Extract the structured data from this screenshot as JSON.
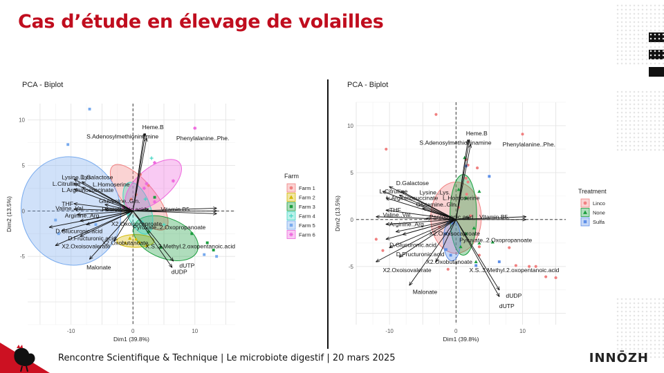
{
  "slide_title": "Cas d’étude en élevage de volailles",
  "footer_text": "Rencontre Scientifique  & Technique | Le microbiote digestif  | 20 mars 2025",
  "logo_text": "INNŌZH",
  "chart_data": [
    {
      "type": "scatter",
      "title": "PCA - Biplot",
      "xlabel": "Dim1 (39.8%)",
      "ylabel": "Dim2 (13.5%)",
      "xlim": [
        -17,
        16.5
      ],
      "ylim": [
        -12.5,
        11.8
      ],
      "x_ticks": [
        -10,
        0,
        10
      ],
      "y_ticks": [
        -5,
        0,
        5,
        10
      ],
      "legend_title": "Farm",
      "legend_position": "right",
      "groups": [
        {
          "name": "Farm 1",
          "color": "#f08080",
          "shape": "circle",
          "ellipse": {
            "cx": 1,
            "cy": 1.5,
            "rx": 2.5,
            "ry": 4.5,
            "angle": 40
          },
          "points": [
            [
              -1.5,
              0.5
            ],
            [
              0.5,
              1.8
            ],
            [
              2.5,
              2.8
            ],
            [
              1.2,
              4.0
            ],
            [
              -0.3,
              1.3
            ]
          ]
        },
        {
          "name": "Farm 2",
          "color": "#d4b800",
          "shape": "triangle",
          "ellipse": {
            "cx": 0.4,
            "cy": -3.3,
            "rx": 3.0,
            "ry": 0.7,
            "angle": 0
          },
          "points": [
            [
              -0.5,
              -3.0
            ],
            [
              1.0,
              -3.4
            ],
            [
              2.2,
              -3.8
            ],
            [
              -1.2,
              -3.5
            ],
            [
              0.5,
              -3.1
            ]
          ]
        },
        {
          "name": "Farm 3",
          "color": "#1b9e3e",
          "shape": "square",
          "ellipse": {
            "cx": 5.3,
            "cy": -3.0,
            "rx": 5.5,
            "ry": 2.2,
            "angle": -22
          },
          "points": [
            [
              3.5,
              1.5
            ],
            [
              4.5,
              -4.0
            ],
            [
              9.5,
              -2.5
            ],
            [
              12,
              -3.5
            ],
            [
              13,
              -4.3
            ],
            [
              2.5,
              -2.3
            ]
          ]
        },
        {
          "name": "Farm 4",
          "color": "#40d6c2",
          "shape": "plus",
          "ellipse": {
            "cx": 0.8,
            "cy": 0.3,
            "rx": 2.0,
            "ry": 3.0,
            "angle": 20
          },
          "points": [
            [
              3,
              5.8
            ],
            [
              5,
              -1.5
            ],
            [
              1.5,
              -1.2
            ],
            [
              -0.7,
              -0.3
            ],
            [
              2.0,
              1.3
            ]
          ]
        },
        {
          "name": "Farm 5",
          "color": "#77aaee",
          "shape": "square",
          "ellipse": {
            "cx": -10,
            "cy": 0,
            "rx": 8.0,
            "ry": 6.0,
            "angle": 15
          },
          "points": [
            [
              -7,
              11.2
            ],
            [
              -10.5,
              7.3
            ],
            [
              -12,
              -2.5
            ],
            [
              -12.5,
              -1.0
            ],
            [
              11.5,
              -4.8
            ],
            [
              13.5,
              -5.0
            ],
            [
              -6,
              -1.5
            ]
          ]
        },
        {
          "name": "Farm 6",
          "color": "#ee66dd",
          "shape": "asterisk",
          "ellipse": {
            "cx": 3.3,
            "cy": 2.9,
            "rx": 5.5,
            "ry": 1.8,
            "angle": 40
          },
          "points": [
            [
              10,
              9.1
            ],
            [
              3.5,
              5.3
            ],
            [
              6.5,
              3.3
            ],
            [
              2.2,
              3.0
            ],
            [
              -1.5,
              0.4
            ],
            [
              1.8,
              2.5
            ],
            [
              3.5,
              1.0
            ]
          ]
        }
      ],
      "vectors": [
        {
          "label": "Heme.B",
          "x": 2.0,
          "y": 8.5,
          "lx": 1.5,
          "ly": 9.2
        },
        {
          "label": "S.Adenosylmethioninamine",
          "x": 1.8,
          "y": 8.5,
          "lx": -7.5,
          "ly": 8.2
        },
        {
          "label": "Phenylalanine..Phe.",
          "x": 2.2,
          "y": 8.0,
          "lx": 7.0,
          "ly": 8.0
        },
        {
          "label": "Lysine..Lys.",
          "x": -9.5,
          "y": 3.5,
          "lx": -11.5,
          "ly": 3.7
        },
        {
          "label": "D.Galactose",
          "x": -8.2,
          "y": 3.2,
          "lx": -8.5,
          "ly": 3.7
        },
        {
          "label": "L.Citrulline",
          "x": -9.5,
          "y": 3.0,
          "lx": -13.0,
          "ly": 3.0
        },
        {
          "label": "L.Homoserine",
          "x": -8.2,
          "y": 2.6,
          "lx": -6.5,
          "ly": 2.9
        },
        {
          "label": "L.Argininosuccinate",
          "x": -9.5,
          "y": 2.4,
          "lx": -11.5,
          "ly": 2.3
        },
        {
          "label": "THF",
          "x": -9.5,
          "y": 0.8,
          "lx": -11.5,
          "ly": 0.8
        },
        {
          "label": "Glutamine..Gln.",
          "x": -4.5,
          "y": 0.7,
          "lx": -5.5,
          "ly": 1.1
        },
        {
          "label": "Valine..Val.",
          "x": -9.5,
          "y": 0.2,
          "lx": -12.5,
          "ly": 0.3
        },
        {
          "label": "Pantothenic.acid",
          "x": -4.5,
          "y": 0.2,
          "lx": -5.0,
          "ly": 0.2
        },
        {
          "label": "Vitamin.B5.",
          "x": 2.5,
          "y": 0.2,
          "lx": 4.5,
          "ly": 0.2
        },
        {
          "label": "Arginine..Arg.",
          "x": -9.0,
          "y": -0.4,
          "lx": -11.0,
          "ly": -0.5
        },
        {
          "label": "",
          "x": 13.5,
          "y": 0.3,
          "lx": 0,
          "ly": 0
        },
        {
          "label": "",
          "x": 13.5,
          "y": 0.0,
          "lx": 0,
          "ly": 0
        },
        {
          "label": "",
          "x": 13.5,
          "y": -0.3,
          "lx": 0,
          "ly": 0
        },
        {
          "label": "X2.Oxoisocaproate",
          "x": -8.5,
          "y": -1.1,
          "lx": -3.5,
          "ly": -1.4
        },
        {
          "label": "Pyruvate..2.Oxopropanoate",
          "x": -7.5,
          "y": -1.5,
          "lx": 0.0,
          "ly": -1.8
        },
        {
          "label": "D.Glucuronic.acid",
          "x": -13.5,
          "y": -1.8,
          "lx": -12.5,
          "ly": -2.2
        },
        {
          "label": "D.Fructuronic.acid",
          "x": -11.5,
          "y": -2.2,
          "lx": -10.5,
          "ly": -3.0
        },
        {
          "label": "X2.Oxobutanoate",
          "x": -8.5,
          "y": -2.8,
          "lx": -5.0,
          "ly": -3.5
        },
        {
          "label": "X.S..3.Methyl.2.oxopentanoic.acid",
          "x": -3.0,
          "y": -3.3,
          "lx": 2.0,
          "ly": -3.9
        },
        {
          "label": "X2.Oxoisovalerate",
          "x": -12.5,
          "y": -3.8,
          "lx": -11.5,
          "ly": -3.9
        },
        {
          "label": "Malonate",
          "x": -7.0,
          "y": -5.3,
          "lx": -7.5,
          "ly": -6.2
        },
        {
          "label": "dUTP",
          "x": 6.5,
          "y": -5.5,
          "lx": 7.5,
          "ly": -6.0
        },
        {
          "label": "dUDP",
          "x": 6.3,
          "y": -6.2,
          "lx": 6.2,
          "ly": -6.7
        }
      ]
    },
    {
      "type": "scatter",
      "title": "PCA - Biplot",
      "xlabel": "Dim1 (39.8%)",
      "ylabel": "Dim2 (13.5%)",
      "xlim": [
        -15,
        16.5
      ],
      "ylim": [
        -11.2,
        12.5
      ],
      "x_ticks": [
        -10,
        0,
        10
      ],
      "y_ticks": [
        -5,
        0,
        5,
        10
      ],
      "legend_title": "Treatment",
      "legend_position": "right",
      "groups": [
        {
          "name": "Linco",
          "color": "#f08080",
          "shape": "circle",
          "ellipse": {
            "cx": 0,
            "cy": 0.2,
            "rx": 3.8,
            "ry": 3.8,
            "angle": 0
          },
          "points": [
            [
              -3,
              11.2
            ],
            [
              -10.5,
              7.5
            ],
            [
              10,
              9.1
            ],
            [
              1.5,
              6.4
            ],
            [
              1.8,
              5.8
            ],
            [
              1.5,
              4.4
            ],
            [
              1.8,
              4.0
            ],
            [
              3.2,
              5.5
            ],
            [
              1.6,
              2.7
            ],
            [
              2.2,
              0.4
            ],
            [
              -2.5,
              -0.8
            ],
            [
              13.5,
              -6.1
            ],
            [
              15,
              -6.2
            ],
            [
              11,
              -5.0
            ],
            [
              12,
              -5.0
            ],
            [
              8,
              -3.0
            ],
            [
              -11,
              -3.3
            ],
            [
              -12,
              -2.1
            ],
            [
              -1.2,
              -5.3
            ],
            [
              3.5,
              -3.8
            ],
            [
              9,
              -4.9
            ],
            [
              3.5,
              -2.9
            ],
            [
              0.4,
              1.3
            ]
          ]
        },
        {
          "name": "None",
          "color": "#1b9e3e",
          "shape": "triangle",
          "ellipse": {
            "cx": 1.1,
            "cy": 0.5,
            "rx": 2.0,
            "ry": 4.3,
            "angle": 0
          },
          "points": [
            [
              1.3,
              6.6
            ],
            [
              0.4,
              3.2
            ],
            [
              1.5,
              2.3
            ],
            [
              3.5,
              3.0
            ],
            [
              3.0,
              -4.5
            ],
            [
              3.5,
              -2.5
            ],
            [
              2.7,
              -0.9
            ],
            [
              5.5,
              -2.4
            ],
            [
              1.5,
              -1.5
            ],
            [
              0.7,
              -2.9
            ]
          ]
        },
        {
          "name": "Sulfa",
          "color": "#5d8fe8",
          "shape": "square",
          "ellipse": {
            "cx": -0.6,
            "cy": -2.2,
            "rx": 1.3,
            "ry": 2.2,
            "angle": 0
          },
          "points": [
            [
              5,
              4.6
            ],
            [
              1.5,
              5.7
            ],
            [
              -0.5,
              -0.4
            ],
            [
              -1.5,
              -1.5
            ],
            [
              3.0,
              -4.9
            ],
            [
              6.5,
              -4.5
            ],
            [
              -0.8,
              -3.8
            ],
            [
              -1.5,
              -3.2
            ]
          ]
        }
      ],
      "vectors": [
        {
          "label": "Heme.B",
          "x": 2.0,
          "y": 8.5,
          "lx": 1.5,
          "ly": 9.2
        },
        {
          "label": "S.Adenosylmethioninamine",
          "x": 1.8,
          "y": 8.5,
          "lx": -5.5,
          "ly": 8.2
        },
        {
          "label": "Phenylalanine..Phe.",
          "x": 2.2,
          "y": 8.0,
          "lx": 7.0,
          "ly": 8.0
        },
        {
          "label": "D.Galactose",
          "x": -10.0,
          "y": 3.5,
          "lx": -9.0,
          "ly": 3.9
        },
        {
          "label": "L.Citrulline",
          "x": -11.0,
          "y": 3.0,
          "lx": -11.5,
          "ly": 3.0
        },
        {
          "label": "Lysine..Lys.",
          "x": -8.2,
          "y": 3.0,
          "lx": -5.5,
          "ly": 2.9
        },
        {
          "label": "L.Homoserine",
          "x": -8.5,
          "y": 2.6,
          "lx": -2.0,
          "ly": 2.3
        },
        {
          "label": "L.Argininosuccinate",
          "x": -10.5,
          "y": 2.3,
          "lx": -10.5,
          "ly": 2.3
        },
        {
          "label": "Glutamine..Gln.",
          "x": -5.0,
          "y": 1.2,
          "lx": -6.0,
          "ly": 1.6
        },
        {
          "label": "THF",
          "x": -10.5,
          "y": 1.0,
          "lx": -10.0,
          "ly": 1.0
        },
        {
          "label": "Valine..Val.",
          "x": -12.0,
          "y": 0.3,
          "lx": -11.0,
          "ly": 0.5
        },
        {
          "label": "Pantothenic.acid",
          "x": -4.5,
          "y": 0.1,
          "lx": -4.0,
          "ly": 0.3
        },
        {
          "label": "Vitamin.B5.",
          "x": 2.0,
          "y": 0.2,
          "lx": 3.5,
          "ly": 0.3
        },
        {
          "label": "Arginine..Arg.",
          "x": -10.5,
          "y": -0.5,
          "lx": -10.0,
          "ly": -0.5
        },
        {
          "label": "",
          "x": 10.5,
          "y": 0.3,
          "lx": 0,
          "ly": 0
        },
        {
          "label": "",
          "x": 10.5,
          "y": 0.0,
          "lx": 0,
          "ly": 0
        },
        {
          "label": "X2.Oxoisocaproate",
          "x": -9.0,
          "y": -1.3,
          "lx": -4.0,
          "ly": -1.5
        },
        {
          "label": "Pyruvate..2.Oxopropanoate",
          "x": -8.0,
          "y": -1.6,
          "lx": 0.5,
          "ly": -2.2
        },
        {
          "label": "D.Glucuronic.acid",
          "x": -10.5,
          "y": -2.1,
          "lx": -10.0,
          "ly": -2.7
        },
        {
          "label": "D.Fructuronic.acid",
          "x": -10.0,
          "y": -3.0,
          "lx": -9.0,
          "ly": -3.7
        },
        {
          "label": "X2.Oxobutanoate",
          "x": -8.5,
          "y": -4.0,
          "lx": -4.5,
          "ly": -4.5
        },
        {
          "label": "X2.Oxoisovalerate",
          "x": -12.0,
          "y": -4.5,
          "lx": -11.0,
          "ly": -5.4
        },
        {
          "label": "X.S..3.Methyl.2.oxopentanoic.acid",
          "x": -3.0,
          "y": -4.5,
          "lx": 2.0,
          "ly": -5.4
        },
        {
          "label": "Malonate",
          "x": -7.0,
          "y": -7.0,
          "lx": -6.5,
          "ly": -7.7
        },
        {
          "label": "dUDP",
          "x": 6.5,
          "y": -7.5,
          "lx": 7.5,
          "ly": -8.1
        },
        {
          "label": "dUTP",
          "x": 6.5,
          "y": -8.2,
          "lx": 6.5,
          "ly": -9.2
        }
      ]
    }
  ]
}
